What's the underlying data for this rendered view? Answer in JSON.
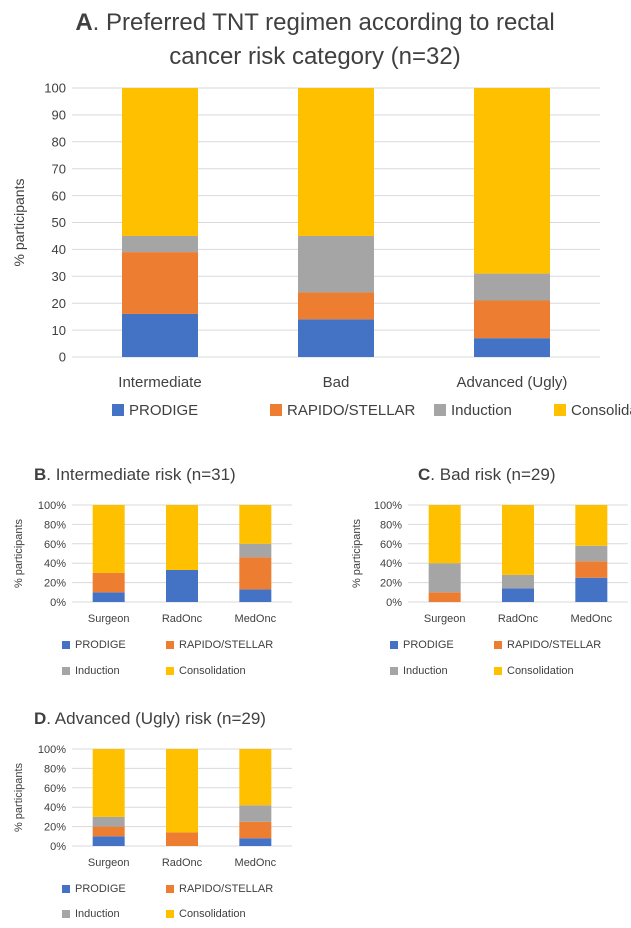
{
  "series_names": [
    "PRODIGE",
    "RAPIDO/STELLAR",
    "Induction",
    "Consolidation"
  ],
  "colors": {
    "PRODIGE": "#4472c4",
    "RAPIDO/STELLAR": "#ed7d31",
    "Induction": "#a5a5a5",
    "Consolidation": "#ffc000",
    "gridline": "#d9d9d9",
    "text": "#404040"
  },
  "chart_data": [
    {
      "type": "bar",
      "stacked": true,
      "title_letter": "A",
      "title_rest": ". Preferred TNT regimen according to rectal",
      "title_line2": "cancer risk category (n=32)",
      "ylabel": "% participants",
      "xlabel": "",
      "ylim": [
        0,
        100
      ],
      "yticks": [
        "0",
        "10",
        "20",
        "30",
        "40",
        "50",
        "60",
        "70",
        "80",
        "90",
        "100"
      ],
      "categories": [
        "Intermediate",
        "Bad",
        "Advanced (Ugly)"
      ],
      "series": [
        {
          "name": "PRODIGE",
          "values": [
            16,
            14,
            7
          ]
        },
        {
          "name": "RAPIDO/STELLAR",
          "values": [
            23,
            10,
            14
          ]
        },
        {
          "name": "Induction",
          "values": [
            6,
            21,
            10
          ]
        },
        {
          "name": "Consolidation",
          "values": [
            55,
            55,
            69
          ]
        }
      ],
      "grid": true,
      "legend_position": "bottom"
    },
    {
      "type": "bar",
      "stacked": true,
      "title_letter": "B",
      "title_rest": ". Intermediate risk (n=31)",
      "ylabel": "% participants",
      "xlabel": "",
      "ylim": [
        0,
        100
      ],
      "yticks": [
        "0%",
        "20%",
        "40%",
        "60%",
        "80%",
        "100%"
      ],
      "categories": [
        "Surgeon",
        "RadOnc",
        "MedOnc"
      ],
      "series": [
        {
          "name": "PRODIGE",
          "values": [
            10,
            33,
            13
          ]
        },
        {
          "name": "RAPIDO/STELLAR",
          "values": [
            20,
            0,
            33
          ]
        },
        {
          "name": "Induction",
          "values": [
            0,
            0,
            14
          ]
        },
        {
          "name": "Consolidation",
          "values": [
            70,
            67,
            40
          ]
        }
      ],
      "grid": true,
      "legend_position": "bottom"
    },
    {
      "type": "bar",
      "stacked": true,
      "title_letter": "C",
      "title_rest": ". Bad risk (n=29)",
      "ylabel": "% participants",
      "xlabel": "",
      "ylim": [
        0,
        100
      ],
      "yticks": [
        "0%",
        "20%",
        "40%",
        "60%",
        "80%",
        "100%"
      ],
      "categories": [
        "Surgeon",
        "RadOnc",
        "MedOnc"
      ],
      "series": [
        {
          "name": "PRODIGE",
          "values": [
            0,
            14,
            25
          ]
        },
        {
          "name": "RAPIDO/STELLAR",
          "values": [
            10,
            0,
            17
          ]
        },
        {
          "name": "Induction",
          "values": [
            30,
            14,
            16
          ]
        },
        {
          "name": "Consolidation",
          "values": [
            60,
            72,
            42
          ]
        }
      ],
      "grid": true,
      "legend_position": "bottom"
    },
    {
      "type": "bar",
      "stacked": true,
      "title_letter": "D",
      "title_rest": ". Advanced (Ugly) risk (n=29)",
      "ylabel": "% participants",
      "xlabel": "",
      "ylim": [
        0,
        100
      ],
      "yticks": [
        "0%",
        "20%",
        "40%",
        "60%",
        "80%",
        "100%"
      ],
      "categories": [
        "Surgeon",
        "RadOnc",
        "MedOnc"
      ],
      "series": [
        {
          "name": "PRODIGE",
          "values": [
            10,
            0,
            8
          ]
        },
        {
          "name": "RAPIDO/STELLAR",
          "values": [
            10,
            14,
            17
          ]
        },
        {
          "name": "Induction",
          "values": [
            10,
            0,
            17
          ]
        },
        {
          "name": "Consolidation",
          "values": [
            70,
            86,
            58
          ]
        }
      ],
      "grid": true,
      "legend_position": "bottom"
    }
  ]
}
